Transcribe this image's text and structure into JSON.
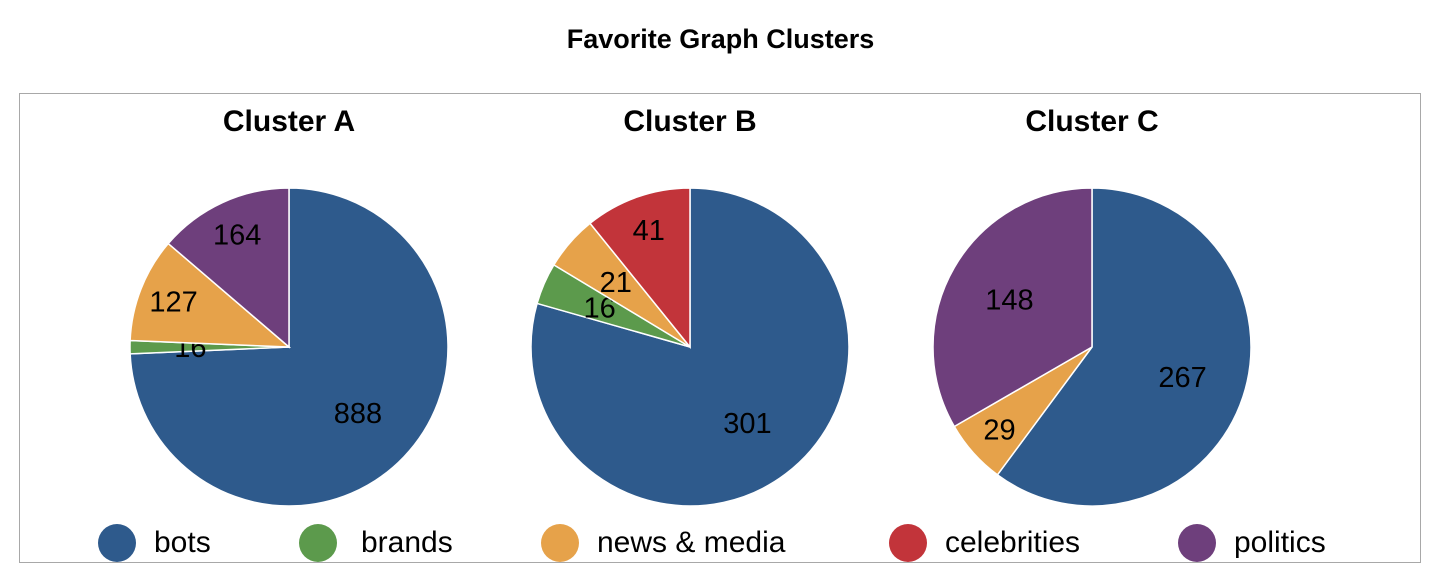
{
  "title": "Favorite Graph Clusters",
  "colors": {
    "bots": "#2e5a8c",
    "brands": "#5c9a4c",
    "news_media": "#e6a24a",
    "celebrities": "#c2343a",
    "politics": "#6e3f7c"
  },
  "chart_data": [
    {
      "type": "pie",
      "title": "Cluster A",
      "slices": [
        {
          "label": "bots",
          "value": 888,
          "color": "#2e5a8c"
        },
        {
          "label": "brands",
          "value": 16,
          "color": "#5c9a4c"
        },
        {
          "label": "news & media",
          "value": 127,
          "color": "#e6a24a"
        },
        {
          "label": "politics",
          "value": 164,
          "color": "#6e3f7c"
        }
      ]
    },
    {
      "type": "pie",
      "title": "Cluster B",
      "slices": [
        {
          "label": "bots",
          "value": 301,
          "color": "#2e5a8c"
        },
        {
          "label": "brands",
          "value": 16,
          "color": "#5c9a4c"
        },
        {
          "label": "news & media",
          "value": 21,
          "color": "#e6a24a"
        },
        {
          "label": "celebrities",
          "value": 41,
          "color": "#c2343a"
        }
      ]
    },
    {
      "type": "pie",
      "title": "Cluster C",
      "slices": [
        {
          "label": "bots",
          "value": 267,
          "color": "#2e5a8c"
        },
        {
          "label": "news & media",
          "value": 29,
          "color": "#e6a24a"
        },
        {
          "label": "politics",
          "value": 148,
          "color": "#6e3f7c"
        }
      ]
    }
  ],
  "legend": [
    {
      "label": "bots",
      "color": "#2e5a8c"
    },
    {
      "label": "brands",
      "color": "#5c9a4c"
    },
    {
      "label": "news & media",
      "color": "#e6a24a"
    },
    {
      "label": "celebrities",
      "color": "#c2343a"
    },
    {
      "label": "politics",
      "color": "#6e3f7c"
    }
  ]
}
